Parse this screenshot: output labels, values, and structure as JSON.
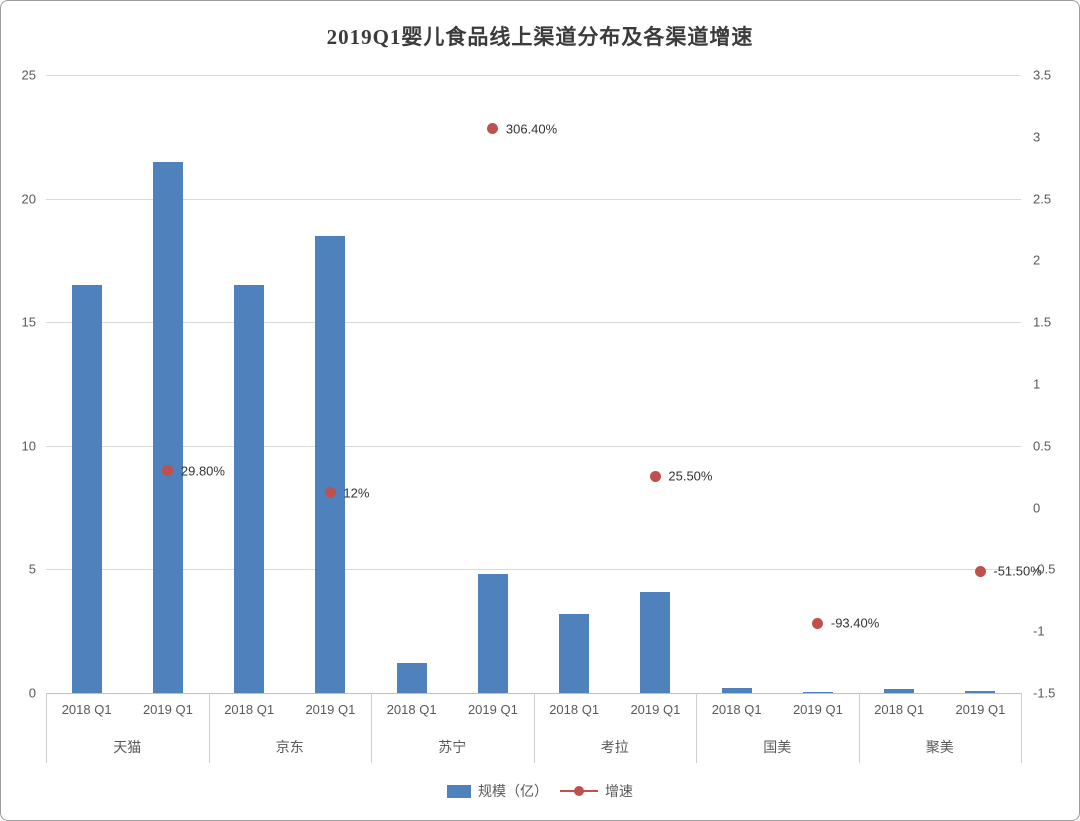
{
  "title": "2019Q1婴儿食品线上渠道分布及各渠道增速",
  "legend": {
    "bar_label": "规模（亿）",
    "growth_label": "增速"
  },
  "chart_data": {
    "type": "bar",
    "subtype": "grouped bars with secondary-axis scatter (dual y-axis combo)",
    "title": "2019Q1婴儿食品线上渠道分布及各渠道增速",
    "groups": [
      "天猫",
      "京东",
      "苏宁",
      "考拉",
      "国美",
      "聚美"
    ],
    "sub_categories": [
      "2018 Q1",
      "2019 Q1"
    ],
    "bar_series": {
      "name": "规模（亿）",
      "values": [
        [
          16.5,
          21.5
        ],
        [
          16.5,
          18.5
        ],
        [
          1.2,
          4.8
        ],
        [
          3.2,
          4.1
        ],
        [
          0.2,
          0.05
        ],
        [
          0.15,
          0.1
        ]
      ]
    },
    "growth_series": {
      "name": "增速",
      "points": [
        {
          "group": "天猫",
          "value": 0.298,
          "label": "29.80%"
        },
        {
          "group": "京东",
          "value": 0.12,
          "label": "12%"
        },
        {
          "group": "苏宁",
          "value": 3.064,
          "label": "306.40%"
        },
        {
          "group": "考拉",
          "value": 0.255,
          "label": "25.50%"
        },
        {
          "group": "国美",
          "value": -0.934,
          "label": "-93.40%"
        },
        {
          "group": "聚美",
          "value": -0.515,
          "label": "-51.50%"
        }
      ]
    },
    "left_axis": {
      "min": 0,
      "max": 25,
      "ticks": [
        0,
        5,
        10,
        15,
        20,
        25
      ]
    },
    "right_axis": {
      "min": -1.5,
      "max": 3.5,
      "ticks": [
        -1.5,
        -1,
        -0.5,
        0,
        0.5,
        1,
        1.5,
        2,
        2.5,
        3,
        3.5
      ]
    },
    "grid": true,
    "legend_position": "bottom",
    "colors": {
      "bar": "#4F81BD",
      "dot": "#C0504D"
    }
  }
}
